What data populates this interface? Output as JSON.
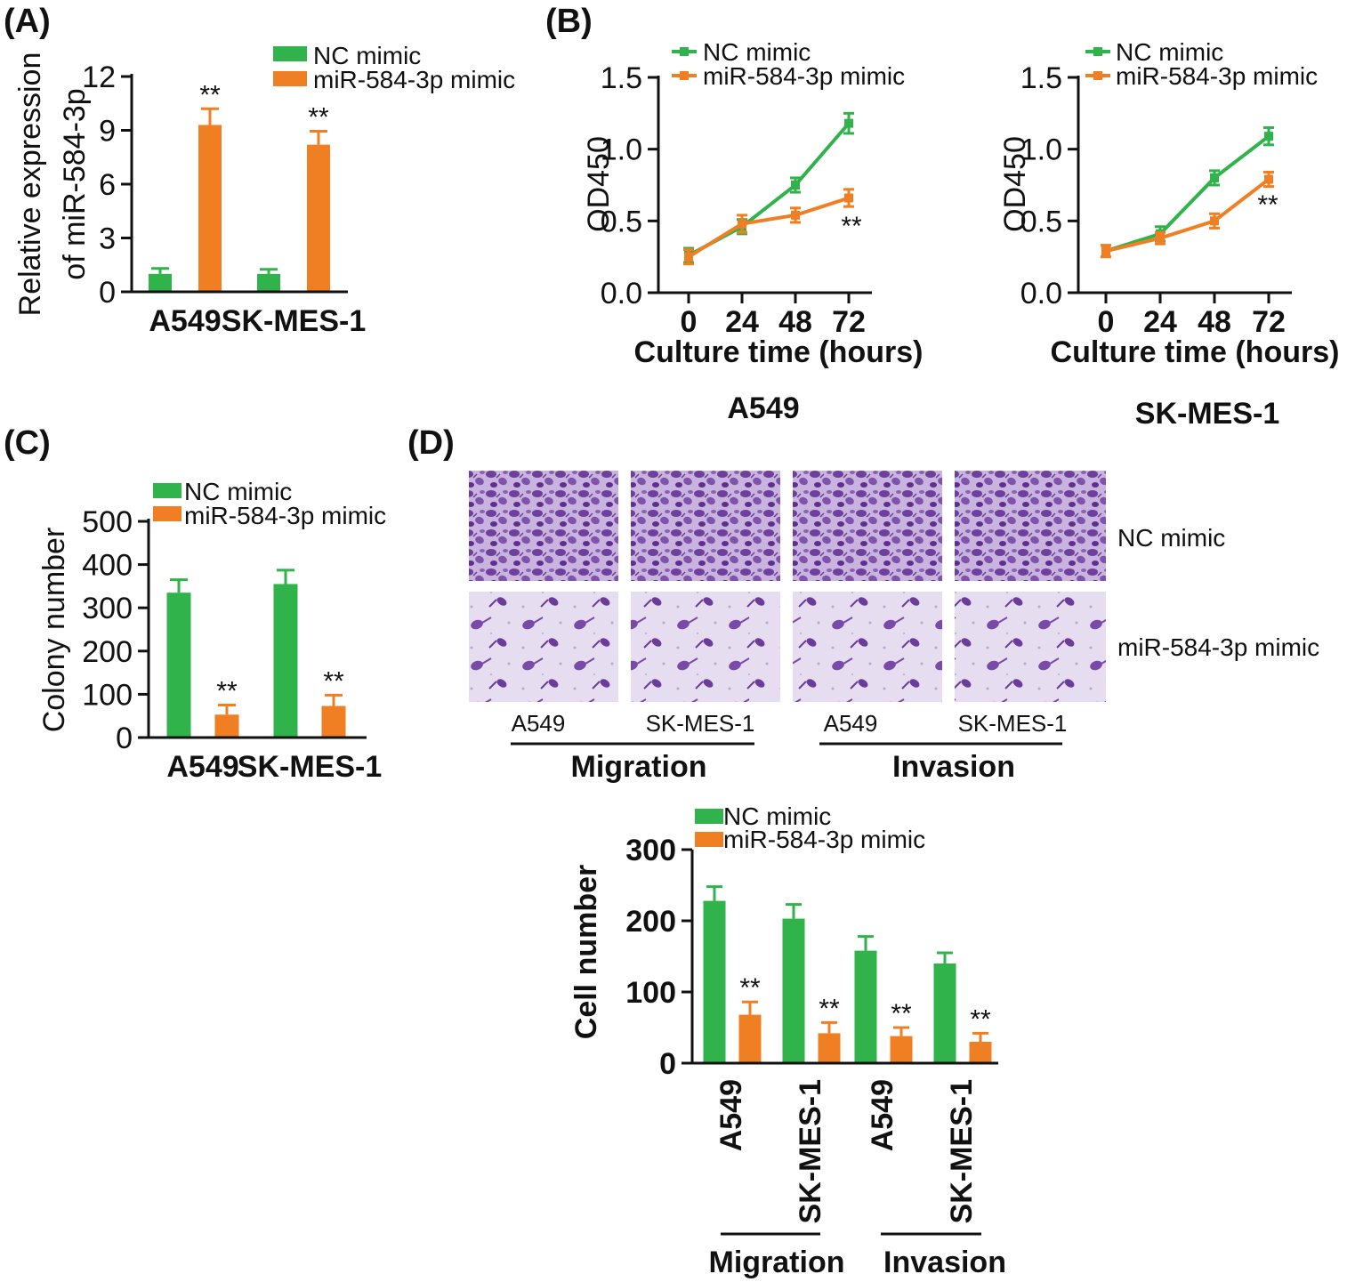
{
  "colors": {
    "nc": "#2fb34a",
    "mir": "#f07f23",
    "axis": "#111111",
    "stain_dense": "#7b4fa6",
    "stain_bg": "#e4ddef"
  },
  "chart_data": [
    {
      "id": "A",
      "panel_label": "(A)",
      "type": "bar",
      "ylabel_lines": [
        "Relative expression",
        "of miR-584-3p"
      ],
      "categories": [
        "A549",
        "SK-MES-1"
      ],
      "yticks": [
        0,
        3,
        6,
        9,
        12
      ],
      "ylim": [
        0,
        12
      ],
      "series": [
        {
          "name": "NC mimic",
          "color_key": "nc",
          "values": [
            1.0,
            1.0
          ],
          "errors": [
            0.3,
            0.25
          ]
        },
        {
          "name": "miR-584-3p mimic",
          "color_key": "mir",
          "values": [
            9.3,
            8.2
          ],
          "errors": [
            0.9,
            0.75
          ]
        }
      ],
      "annotations": [
        "",
        "**"
      ]
    },
    {
      "id": "B1",
      "panel_label": "(B)",
      "type": "line",
      "title": "A549",
      "xlabel": "Culture time (hours)",
      "ylabel": "OD450",
      "x": [
        0,
        24,
        48,
        72
      ],
      "xticks": [
        "0",
        "24",
        "48",
        "72"
      ],
      "yticks": [
        "0.0",
        "0.5",
        "1.0",
        "1.5"
      ],
      "ylim": [
        0,
        1.5
      ],
      "series": [
        {
          "name": "NC mimic",
          "color_key": "nc",
          "values": [
            0.26,
            0.46,
            0.75,
            1.18
          ],
          "errors": [
            0.05,
            0.05,
            0.05,
            0.07
          ]
        },
        {
          "name": "miR-584-3p mimic",
          "color_key": "mir",
          "values": [
            0.25,
            0.48,
            0.54,
            0.66
          ],
          "errors": [
            0.05,
            0.06,
            0.05,
            0.06
          ]
        }
      ],
      "annotation": "**"
    },
    {
      "id": "B2",
      "type": "line",
      "title": "SK-MES-1",
      "xlabel": "Culture time (hours)",
      "ylabel": "OD450",
      "x": [
        0,
        24,
        48,
        72
      ],
      "xticks": [
        "0",
        "24",
        "48",
        "72"
      ],
      "yticks": [
        "0.0",
        "0.5",
        "1.0",
        "1.5"
      ],
      "ylim": [
        0,
        1.5
      ],
      "series": [
        {
          "name": "NC mimic",
          "color_key": "nc",
          "values": [
            0.29,
            0.41,
            0.8,
            1.09
          ],
          "errors": [
            0.04,
            0.05,
            0.05,
            0.06
          ]
        },
        {
          "name": "miR-584-3p mimic",
          "color_key": "mir",
          "values": [
            0.29,
            0.38,
            0.5,
            0.79
          ],
          "errors": [
            0.04,
            0.04,
            0.05,
            0.05
          ]
        }
      ],
      "annotation": "**"
    },
    {
      "id": "C",
      "panel_label": "(C)",
      "type": "bar",
      "ylabel": "Colony number",
      "categories": [
        "A549",
        "SK-MES-1"
      ],
      "yticks": [
        0,
        100,
        200,
        300,
        400,
        500
      ],
      "ylim": [
        0,
        500
      ],
      "series": [
        {
          "name": "NC mimic",
          "color_key": "nc",
          "values": [
            335,
            355
          ],
          "errors": [
            30,
            32
          ]
        },
        {
          "name": "miR-584-3p mimic",
          "color_key": "mir",
          "values": [
            53,
            73
          ],
          "errors": [
            22,
            25
          ]
        }
      ],
      "annotations": [
        "",
        "**"
      ]
    },
    {
      "id": "D",
      "panel_label": "(D)",
      "type": "bar",
      "ylabel": "Cell number",
      "categories": [
        "A549",
        "SK-MES-1",
        "A549",
        "SK-MES-1"
      ],
      "groups": [
        "Migration",
        "Invasion"
      ],
      "yticks": [
        0,
        100,
        200,
        300
      ],
      "ylim": [
        0,
        300
      ],
      "series": [
        {
          "name": "NC mimic",
          "color_key": "nc",
          "values": [
            228,
            203,
            158,
            140
          ],
          "errors": [
            20,
            20,
            20,
            15
          ]
        },
        {
          "name": "miR-584-3p mimic",
          "color_key": "mir",
          "values": [
            68,
            42,
            38,
            30
          ],
          "errors": [
            18,
            15,
            12,
            12
          ]
        }
      ],
      "annotations": [
        "",
        "**"
      ]
    }
  ],
  "micrographs": {
    "columns": [
      "A549",
      "SK-MES-1",
      "A549",
      "SK-MES-1"
    ],
    "rows": [
      "NC mimic",
      "miR-584-3p mimic"
    ],
    "groups": [
      "Migration",
      "Invasion"
    ]
  }
}
